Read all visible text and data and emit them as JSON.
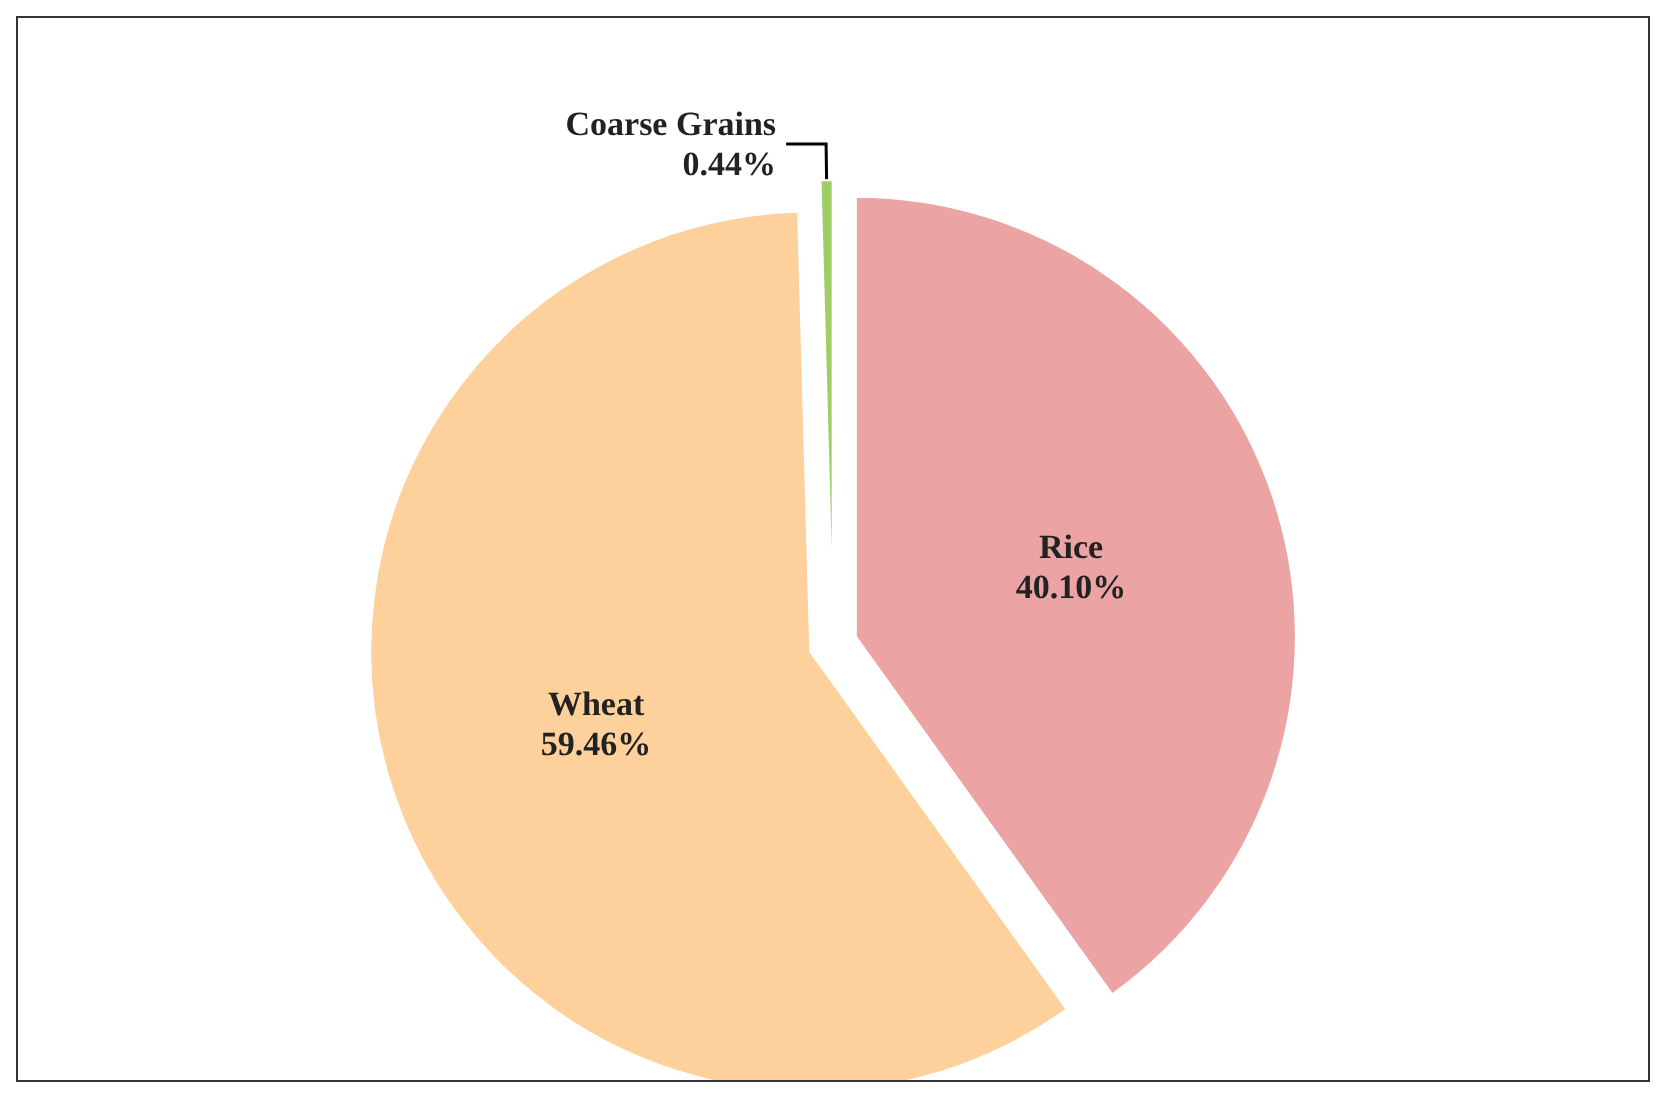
{
  "chart_data": {
    "type": "pie",
    "categories": [
      "Rice",
      "Wheat",
      "Coarse Grains"
    ],
    "values": [
      40.1,
      59.46,
      0.44
    ],
    "colors": [
      "#eba3a3",
      "#fdd09c",
      "#9fcf63"
    ],
    "value_labels": [
      "40.10%",
      "59.46%",
      "0.44%"
    ],
    "legend": false
  }
}
